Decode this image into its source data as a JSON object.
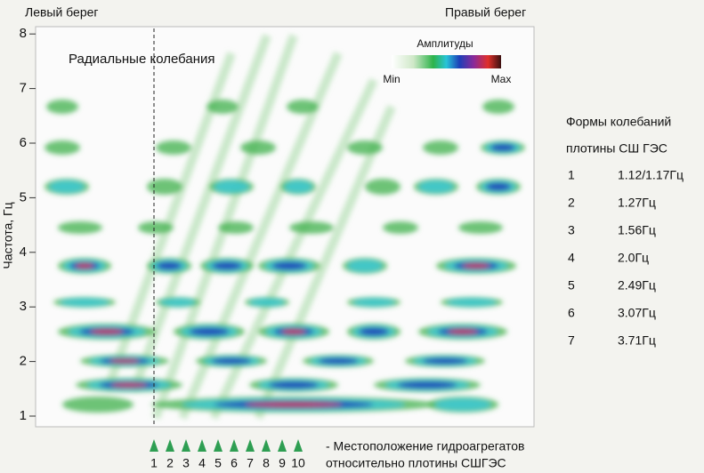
{
  "header": {
    "left_bank": "Левый берег",
    "right_bank": "Правый берег"
  },
  "plot": {
    "annotation": "Радиальные колебания",
    "y_axis_label": "Частота, Гц",
    "y_ticks": [
      "1",
      "2",
      "3",
      "4",
      "5",
      "6",
      "7",
      "8"
    ],
    "colorbar": {
      "title": "Амплитуды",
      "min": "Min",
      "max": "Max"
    }
  },
  "units": {
    "labels": [
      "1",
      "2",
      "3",
      "4",
      "5",
      "6",
      "7",
      "8",
      "9",
      "10"
    ],
    "caption": [
      "- Местоположение гидроагрегатов",
      "относительно плотины СШГЭС"
    ]
  },
  "modes": {
    "title": [
      "Формы колебаний",
      "плотины СШ ГЭС"
    ],
    "rows": [
      [
        "1",
        "1.12/1.17Гц"
      ],
      [
        "2",
        "1.27Гц"
      ],
      [
        "3",
        "1.56Гц"
      ],
      [
        "4",
        "2.0Гц"
      ],
      [
        "5",
        "2.49Гц"
      ],
      [
        "6",
        "3.07Гц"
      ],
      [
        "7",
        "3.71Гц"
      ]
    ]
  }
}
